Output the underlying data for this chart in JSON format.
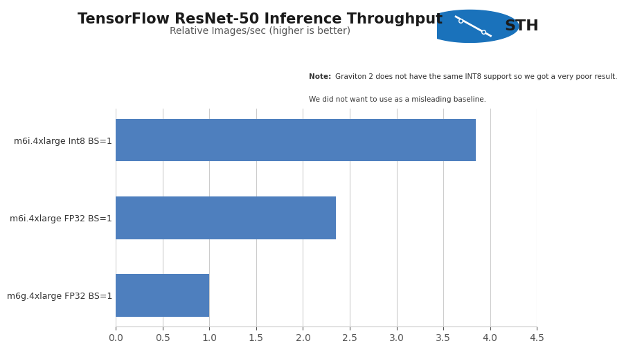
{
  "title": "TensorFlow ResNet-50 Inference Throughput",
  "subtitle": "Relative Images/sec (higher is better)",
  "categories": [
    "m6g.4xlarge FP32 BS=1",
    "m6i.4xlarge FP32 BS=1",
    "m6i.4xlarge Int8 BS=1"
  ],
  "values": [
    1.0,
    2.35,
    3.85
  ],
  "bar_color": "#4E7FBE",
  "xlim": [
    0,
    4.5
  ],
  "xticks": [
    0,
    0.5,
    1.0,
    1.5,
    2.0,
    2.5,
    3.0,
    3.5,
    4.0,
    4.5
  ],
  "background_color": "#FFFFFF",
  "plot_bg_color": "#FFFFFF",
  "grid_color": "#CCCCCC",
  "note_text_bold": "Note:",
  "note_text_normal": " Graviton 2 does not have the same INT8 support so we got a very poor result.\nWe did not want to use as a misleading baseline.",
  "note_bg_color": "#E0E0E0",
  "note_border_color": "#AAAAAA",
  "title_fontsize": 15,
  "subtitle_fontsize": 10,
  "ylabel_fontsize": 9,
  "tick_fontsize": 10,
  "bar_height": 0.55,
  "note_fontsize": 7.5,
  "logo_circle_color": "#1A72BB",
  "logo_text_color": "#1A1A1A"
}
